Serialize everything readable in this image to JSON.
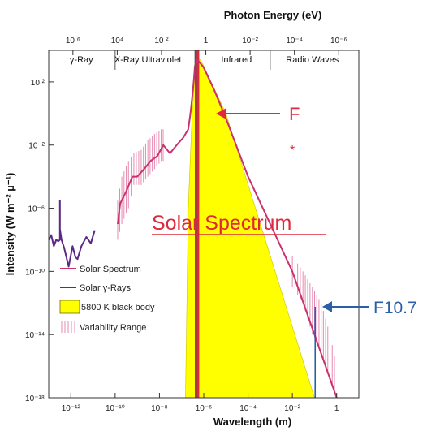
{
  "chart_data": {
    "type": "line",
    "title": "",
    "xlabel": "Wavelength (m)",
    "x2label": "Photon Energy (eV)",
    "ylabel": "Intensity (W m⁻² µ⁻¹)",
    "xscale": "log",
    "yscale": "log",
    "xlim": [
      1e-13,
      10
    ],
    "ylim": [
      1e-18,
      10000.0
    ],
    "x_ticks": [
      {
        "value": 1e-12,
        "label": "10⁻¹²"
      },
      {
        "value": 1e-10,
        "label": "10⁻¹⁰"
      },
      {
        "value": 1e-08,
        "label": "10⁻⁸"
      },
      {
        "value": 1e-06,
        "label": "10⁻⁶"
      },
      {
        "value": 0.0001,
        "label": "10⁻⁴"
      },
      {
        "value": 0.01,
        "label": "10⁻²"
      },
      {
        "value": 1,
        "label": "1"
      }
    ],
    "x2_ticks": [
      {
        "value": 1.24e-12,
        "label": "10 ⁶"
      },
      {
        "value": 1.24e-10,
        "label": "10⁴"
      },
      {
        "value": 1.24e-08,
        "label": "10 ²"
      },
      {
        "value": 1.24e-06,
        "label": "1"
      },
      {
        "value": 0.000124,
        "label": "10⁻²"
      },
      {
        "value": 0.0124,
        "label": "10⁻⁴"
      },
      {
        "value": 1.24,
        "label": "10⁻⁶"
      }
    ],
    "y_ticks": [
      {
        "value": 100,
        "label": "10 ²"
      },
      {
        "value": 0.01,
        "label": "10⁻²"
      },
      {
        "value": 1e-06,
        "label": "10⁻⁶"
      },
      {
        "value": 1e-10,
        "label": "10⁻¹⁰"
      },
      {
        "value": 1e-14,
        "label": "10⁻¹⁴"
      },
      {
        "value": 1e-18,
        "label": "10⁻¹⁸"
      }
    ],
    "bands": [
      {
        "label": "γ-Ray",
        "center": 3e-12
      },
      {
        "label": "X-Ray Ultraviolet",
        "center": 3e-09
      },
      {
        "label": "Infrared",
        "center": 3e-05
      },
      {
        "label": "Radio Waves",
        "center": 0.08
      }
    ],
    "band_dividers": [
      1e-10,
      4e-07,
      0.001
    ],
    "series": [
      {
        "name": "Solar Spectrum",
        "color": "#c8326e",
        "x": [
          1.3e-10,
          1.7e-10,
          3e-10,
          6e-10,
          1e-09,
          2e-09,
          4e-09,
          8e-09,
          1.5e-08,
          3e-08,
          6e-08,
          1.2e-07,
          2e-07,
          2.5e-07,
          3e-07,
          3.5e-07,
          4e-07,
          5e-07,
          6e-07,
          1e-06,
          3e-06,
          1e-05,
          0.0001,
          0.001,
          0.01,
          0.1,
          1
        ],
        "y": [
          1e-07,
          2e-06,
          1e-05,
          0.0001,
          0.0001,
          0.0003,
          0.001,
          0.002,
          0.01,
          0.003,
          0.01,
          0.03,
          0.1,
          1,
          10,
          100,
          1000,
          2500,
          2000,
          800,
          30,
          0.5,
          0.0001,
          1e-07,
          1e-10,
          1e-14,
          1e-18
        ]
      },
      {
        "name": "Solar γ-Rays",
        "color": "#5b2a86",
        "x": [
          1e-13,
          1.3e-13,
          1.7e-13,
          2.2e-13,
          2.7e-13,
          3.2e-13,
          3.2e-13,
          3.2e-13,
          3.8e-13,
          5e-13,
          8e-13,
          1.2e-12,
          1.6e-12,
          2e-12,
          3e-12,
          5e-12,
          8e-12,
          1.2e-11
        ],
        "y": [
          1e-08,
          2e-08,
          4e-09,
          1e-08,
          8e-09,
          1e-08,
          3e-06,
          5e-08,
          1e-08,
          3e-09,
          2e-10,
          4e-09,
          8e-10,
          6e-10,
          4e-09,
          1.5e-08,
          6e-09,
          4e-08
        ]
      },
      {
        "name": "5800 K black body",
        "color": "#ffff00",
        "peak_wavelength": 5e-07,
        "peak_value": 3000,
        "x": [
          1.5e-07,
          2e-07,
          3e-07,
          4e-07,
          5e-07,
          7e-07,
          1e-06,
          1e-05,
          0.1
        ],
        "y": [
          1e-18,
          1e-06,
          1,
          300,
          3000,
          2500,
          1000,
          1,
          1e-18
        ]
      }
    ],
    "variability_range": {
      "name": "Variability Range",
      "color": "#e58ab0",
      "x": [
        1.3e-10,
        2e-10,
        4e-10,
        7e-10,
        1.5e-09,
        3e-09,
        6e-09,
        1.2e-08,
        1.8e-08,
        0.01,
        0.03,
        0.08,
        0.2,
        0.5,
        1
      ],
      "y_low": [
        1e-08,
        1e-07,
        1e-06,
        3e-05,
        3e-05,
        0.0001,
        0.0003,
        0.001,
        0.001,
        1e-11,
        1e-12,
        1e-14,
        1e-15,
        1e-17,
        1e-18
      ],
      "y_high": [
        3e-06,
        0.0001,
        0.001,
        0.003,
        0.005,
        0.02,
        0.05,
        0.1,
        0.1,
        1e-09,
        1e-10,
        1e-11,
        1e-12,
        1e-14,
        1e-16
      ]
    },
    "vertical_lines": [
      {
        "x": 4.5e-07,
        "color": "#555555"
      },
      {
        "x": 5.5e-07,
        "color": "#e0283c"
      }
    ],
    "legend": {
      "position": "bottom-left"
    },
    "grid": false,
    "annotations": [
      {
        "text": "F",
        "color": "#e0283c"
      },
      {
        "text": "*",
        "color": "#e0283c"
      },
      {
        "text": "Solar Spectrum",
        "color": "#e0283c"
      },
      {
        "text": "F10.7",
        "color": "#2b5fa8"
      }
    ],
    "f107_marker": {
      "x": 0.107,
      "color": "#2b5fa8"
    }
  }
}
